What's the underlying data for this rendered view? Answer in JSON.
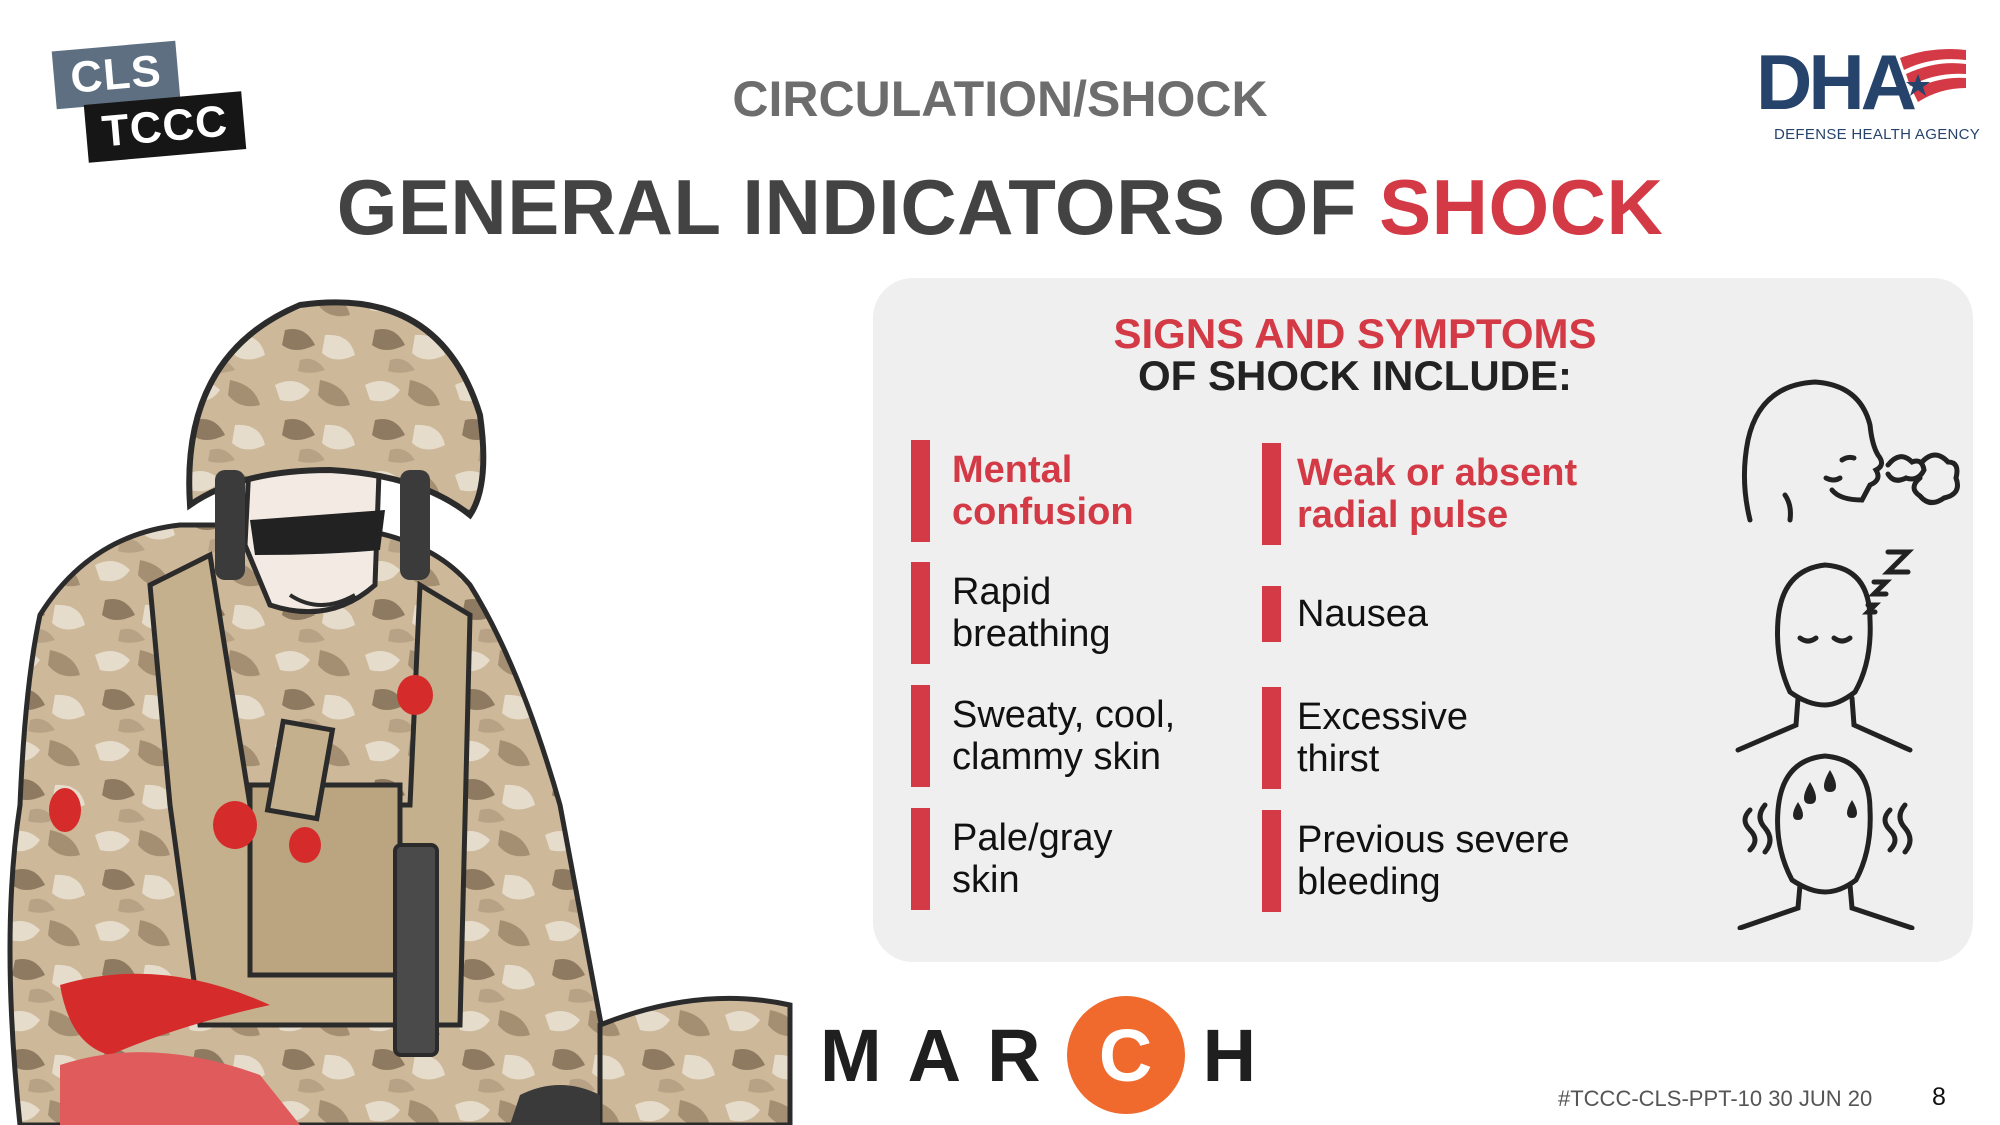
{
  "logos": {
    "cls": "CLS",
    "tccc": "TCCC",
    "dha": "DHA",
    "dha_subtitle": "DEFENSE HEALTH AGENCY"
  },
  "section_title": "CIRCULATION/SHOCK",
  "main_title": {
    "prefix": "GENERAL INDICATORS OF ",
    "highlight": "SHOCK"
  },
  "card": {
    "heading_line1": "SIGNS AND SYMPTOMS",
    "heading_line2": "OF SHOCK INCLUDE:",
    "left_items": [
      {
        "line1": "Mental",
        "line2": "confusion",
        "emphasis": true
      },
      {
        "line1": "Rapid",
        "line2": "breathing",
        "emphasis": false
      },
      {
        "line1": "Sweaty, cool,",
        "line2": "clammy skin",
        "emphasis": false
      },
      {
        "line1": "Pale/gray",
        "line2": "skin",
        "emphasis": false
      }
    ],
    "right_items": [
      {
        "line1": "Weak or absent",
        "line2": "radial pulse",
        "emphasis": true
      },
      {
        "line1": "Nausea",
        "line2": "",
        "emphasis": false
      },
      {
        "line1": "Excessive",
        "line2": "thirst",
        "emphasis": false
      },
      {
        "line1": "Previous severe",
        "line2": "bleeding",
        "emphasis": false
      }
    ],
    "icons": [
      "breathing-head-icon",
      "sleepy-head-icon",
      "sweating-head-icon"
    ]
  },
  "march": {
    "letters": [
      "M",
      "A",
      "R",
      "C",
      "H"
    ],
    "highlighted_letter": "C"
  },
  "footer": {
    "code": "#TCCC-CLS-PPT-10 30 JUN 20",
    "page": "8"
  },
  "colors": {
    "accent_red": "#d33a45",
    "march_orange": "#ef6a2c",
    "dha_blue": "#26436b",
    "card_bg": "#efefef"
  }
}
